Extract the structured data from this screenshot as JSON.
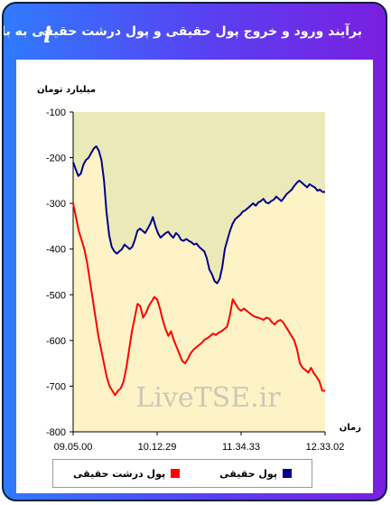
{
  "header": {
    "title": "برآیند ورود و خروج پول حقیقی و پول درشت حقیقی به بازار",
    "link_icon": "link-icon",
    "info_icon": "info-icon",
    "info_glyph": "i"
  },
  "colors": {
    "gradient_start": "#2f7bff",
    "gradient_end": "#7a1fe0",
    "area_fill": "#fdf3c6",
    "area_fill_top": "#ece9b8",
    "real_money": "#00008b",
    "big_real_money": "#ff0000"
  },
  "chart_data": {
    "type": "line",
    "ylabel": "میلیارد تومان",
    "xlabel": "زمان",
    "ylim": [
      -800,
      -100
    ],
    "yticks": [
      -100,
      -200,
      -300,
      -400,
      -500,
      -600,
      -700,
      -800
    ],
    "xtick_labels": [
      "09.05.00",
      "10.12.29",
      "11.34.33",
      "12.33.02"
    ],
    "watermark": "LiveTSE.ir",
    "grid": false,
    "legend_position": "bottom",
    "series": [
      {
        "name": "پول حقیقی",
        "values": [
          -210,
          -225,
          -240,
          -235,
          -215,
          -205,
          -200,
          -190,
          -180,
          -175,
          -185,
          -205,
          -250,
          -320,
          -370,
          -395,
          -405,
          -410,
          -405,
          -400,
          -390,
          -395,
          -400,
          -395,
          -380,
          -360,
          -355,
          -360,
          -365,
          -355,
          -345,
          -330,
          -350,
          -365,
          -375,
          -370,
          -365,
          -362,
          -370,
          -375,
          -365,
          -370,
          -380,
          -382,
          -378,
          -382,
          -385,
          -390,
          -388,
          -395,
          -400,
          -405,
          -420,
          -445,
          -455,
          -470,
          -475,
          -465,
          -440,
          -400,
          -380,
          -360,
          -345,
          -335,
          -330,
          -325,
          -318,
          -315,
          -310,
          -305,
          -300,
          -305,
          -298,
          -295,
          -290,
          -298,
          -300,
          -295,
          -292,
          -285,
          -290,
          -295,
          -288,
          -280,
          -275,
          -270,
          -262,
          -255,
          -250,
          -255,
          -260,
          -265,
          -258,
          -262,
          -265,
          -272,
          -270,
          -275,
          -275
        ]
      },
      {
        "name": "پول درشت حقیقی",
        "values": [
          -300,
          -330,
          -360,
          -380,
          -400,
          -430,
          -470,
          -510,
          -550,
          -590,
          -620,
          -650,
          -680,
          -700,
          -710,
          -720,
          -710,
          -705,
          -690,
          -660,
          -620,
          -580,
          -550,
          -520,
          -525,
          -550,
          -540,
          -525,
          -515,
          -505,
          -510,
          -530,
          -555,
          -575,
          -590,
          -580,
          -600,
          -615,
          -630,
          -645,
          -650,
          -640,
          -628,
          -620,
          -615,
          -610,
          -605,
          -598,
          -595,
          -590,
          -585,
          -588,
          -583,
          -580,
          -575,
          -570,
          -545,
          -510,
          -520,
          -530,
          -535,
          -530,
          -535,
          -540,
          -545,
          -548,
          -550,
          -552,
          -555,
          -550,
          -552,
          -560,
          -565,
          -558,
          -555,
          -560,
          -570,
          -580,
          -590,
          -600,
          -620,
          -650,
          -660,
          -665,
          -670,
          -660,
          -672,
          -680,
          -690,
          -710,
          -710
        ]
      }
    ]
  }
}
